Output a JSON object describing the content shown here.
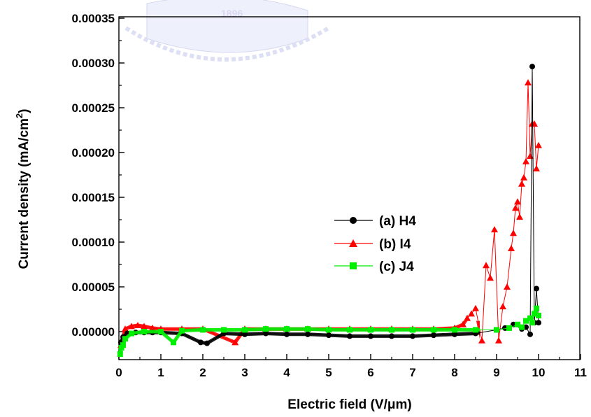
{
  "chart_data": {
    "type": "scatter",
    "title": "",
    "xlabel": "Electric field (V/μm)",
    "ylabel_main": "Current density (mA/cm",
    "ylabel_sup": "2",
    "ylabel_tail": ")",
    "xlim": [
      0,
      11
    ],
    "ylim": [
      -3e-05,
      0.00035
    ],
    "xticks": [
      "0",
      "1",
      "2",
      "3",
      "4",
      "5",
      "6",
      "7",
      "8",
      "9",
      "10",
      "11"
    ],
    "yticks": [
      "0.00000",
      "0.00005",
      "0.00010",
      "0.00015",
      "0.00020",
      "0.00025",
      "0.00030",
      "0.00035"
    ],
    "ytick_values": [
      0,
      5e-05,
      0.0001,
      0.00015,
      0.0002,
      0.00025,
      0.0003,
      0.00035
    ],
    "legend_placement": "center-right",
    "watermark_text": "1896",
    "series": [
      {
        "name": "(a) H4",
        "color": "#000000",
        "marker": "circle",
        "x": [
          0.05,
          0.1,
          0.2,
          0.4,
          0.6,
          0.8,
          1.0,
          1.5,
          1.95,
          2.1,
          2.5,
          3,
          3.5,
          4,
          4.5,
          5,
          5.5,
          6,
          6.5,
          7,
          7.5,
          8,
          8.5,
          9,
          9.2,
          9.4,
          9.6,
          9.7,
          9.8,
          9.85,
          9.9,
          9.95,
          10.0
        ],
        "y": [
          -1.2e-05,
          -6e-06,
          -2e-06,
          -1e-06,
          -1e-06,
          -1e-06,
          -1e-06,
          -2e-06,
          -1.2e-05,
          -1.3e-05,
          -2e-06,
          -3e-06,
          -2e-06,
          -3e-06,
          -3e-06,
          -4e-06,
          -5e-06,
          -5e-06,
          -5e-06,
          -5e-06,
          -4e-06,
          -3e-06,
          -2e-06,
          2e-06,
          4e-06,
          8e-06,
          3e-06,
          5e-06,
          -3e-06,
          0.000296,
          1e-05,
          4.8e-05,
          1e-05
        ]
      },
      {
        "name": "(b) I4",
        "color": "#ff0000",
        "marker": "triangle",
        "x": [
          0.05,
          0.15,
          0.3,
          0.45,
          0.6,
          0.8,
          1.0,
          1.5,
          2,
          2.77,
          3,
          3.5,
          4,
          4.5,
          5,
          5.5,
          6,
          6.5,
          7,
          7.5,
          8,
          8.2,
          8.3,
          8.4,
          8.5,
          8.65,
          8.75,
          8.85,
          8.95,
          9.05,
          9.15,
          9.25,
          9.35,
          9.4,
          9.45,
          9.5,
          9.55,
          9.6,
          9.65,
          9.7,
          9.75,
          9.8,
          9.85,
          9.9,
          9.95,
          10.0
        ],
        "y": [
          -1.5e-05,
          3e-06,
          6e-06,
          7e-06,
          6e-06,
          4e-06,
          3e-06,
          3e-06,
          3e-06,
          -1.2e-05,
          3e-06,
          3e-06,
          3e-06,
          3e-06,
          3e-06,
          3e-06,
          3e-06,
          3e-06,
          3e-06,
          3e-06,
          4e-06,
          8e-06,
          1.5e-05,
          2e-05,
          2.6e-05,
          -1e-05,
          7.4e-05,
          6e-05,
          0.000114,
          -1e-05,
          2.8e-05,
          5e-05,
          9.3e-05,
          0.00011,
          0.000138,
          0.000145,
          0.000128,
          0.000165,
          0.000172,
          0.00019,
          0.000278,
          0.000196,
          0.000232,
          0.000232,
          0.000182,
          0.000208
        ]
      },
      {
        "name": "(c) J4",
        "color": "#00ee00",
        "marker": "square",
        "x": [
          0.03,
          0.06,
          0.1,
          0.15,
          0.3,
          0.6,
          1.0,
          1.3,
          1.5,
          2,
          2.5,
          3,
          3.5,
          4,
          4.5,
          5,
          5.5,
          6,
          6.5,
          7,
          7.5,
          8,
          8.5,
          9,
          9.3,
          9.5,
          9.6,
          9.7,
          9.8,
          9.85,
          9.9,
          9.95,
          10.0
        ],
        "y": [
          -2.5e-05,
          -1.8e-05,
          -1.5e-05,
          -8e-06,
          -2e-06,
          0.0,
          0.0,
          -1.2e-05,
          1e-06,
          2e-06,
          2e-06,
          2e-06,
          3e-06,
          3e-06,
          3e-06,
          2e-06,
          2e-06,
          2e-06,
          2e-06,
          2e-06,
          2e-06,
          2e-06,
          2e-06,
          2e-06,
          4e-06,
          8e-06,
          5e-06,
          1.2e-05,
          1.5e-05,
          1e-05,
          2e-05,
          2.6e-05,
          1.8e-05
        ]
      }
    ]
  }
}
